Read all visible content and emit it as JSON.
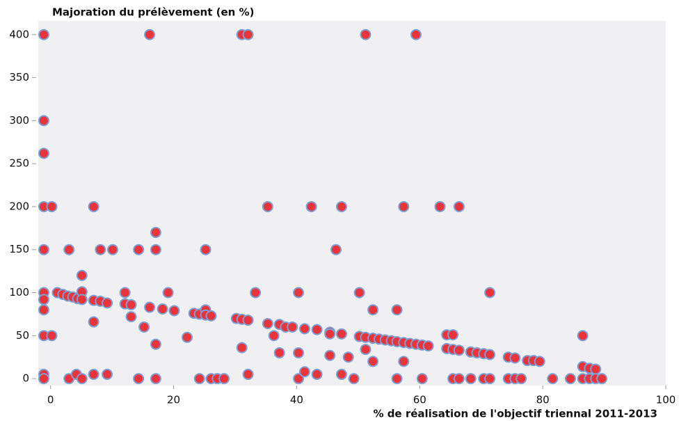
{
  "chart_data": {
    "type": "scatter",
    "title": "Majoration du prélèvement (en %)",
    "x_label": "% de réalisation de l'objectif triennal 2011-2013",
    "xlim": [
      -2,
      100
    ],
    "xticks": [
      0,
      20,
      40,
      60,
      80,
      100
    ],
    "ylim": [
      -8,
      416
    ],
    "yticks": [
      0,
      50,
      100,
      150,
      200,
      250,
      300,
      350,
      400
    ],
    "grid": false,
    "series": [
      {
        "color": "#e8343a",
        "x": [
          -1.1,
          -1.1,
          -1.1,
          -1.1,
          -1.1,
          -1.1,
          -1.1,
          -1.1,
          -1.1,
          -1.1,
          -1.1,
          0.2,
          0.2,
          1.1,
          2,
          2.8,
          3.6,
          3,
          3,
          4.2,
          4.4,
          5.1,
          5.1,
          5.1,
          5.1,
          7,
          7,
          7,
          7,
          8.1,
          8.1,
          9.2,
          9.2,
          10.1,
          12.1,
          12.1,
          13.1,
          13.1,
          14.3,
          14.3,
          15.2,
          16.1,
          16.1,
          17.1,
          17.1,
          17.1,
          17.1,
          18.2,
          19.1,
          20.1,
          22.2,
          23.3,
          24.2,
          24.2,
          25.2,
          25.2,
          25.2,
          26.1,
          26.1,
          27.1,
          28.2,
          30.2,
          31.1,
          31.1,
          31.1,
          32.1,
          32.1,
          32.1,
          33.3,
          35.3,
          35.3,
          36.3,
          37.2,
          37.2,
          38.2,
          39.3,
          40.3,
          40.3,
          40.3,
          41.3,
          41.3,
          42.4,
          43.3,
          43.3,
          45.4,
          45.4,
          45.4,
          46.4,
          47.3,
          47.3,
          47.3,
          48.4,
          49.3,
          50.2,
          50.2,
          51.2,
          51.2,
          51.2,
          52.4,
          52.4,
          52.4,
          53.4,
          54.4,
          55.4,
          56.3,
          56.3,
          56.3,
          57.4,
          57.4,
          57.4,
          58.4,
          59.4,
          59.4,
          60.4,
          60.4,
          61.4,
          63.3,
          64.4,
          64.4,
          65.4,
          65.4,
          65.4,
          66.4,
          66.4,
          66.4,
          68.3,
          68.3,
          69.3,
          70.4,
          70.4,
          71.4,
          71.4,
          71.4,
          74.4,
          74.4,
          75.5,
          75.5,
          76.5,
          77.5,
          78.5,
          79.5,
          81.6,
          84.5,
          86.5,
          86.5,
          86.5,
          87.6,
          87.6,
          88.6,
          88.6,
          89.6
        ],
        "values": [
          400,
          300,
          262,
          200,
          150,
          100,
          92,
          80,
          50,
          5,
          0,
          200,
          50,
          100,
          98,
          96,
          95,
          150,
          0,
          5,
          93,
          120,
          101,
          92,
          0,
          200,
          91,
          66,
          5,
          150,
          90,
          88,
          5,
          150,
          100,
          87,
          86,
          72,
          150,
          0,
          60,
          400,
          83,
          170,
          150,
          40,
          0,
          81,
          100,
          79,
          48,
          76,
          75,
          0,
          150,
          80,
          74,
          73,
          0,
          0,
          0,
          70,
          400,
          69,
          36,
          400,
          68,
          5,
          100,
          200,
          64,
          50,
          63,
          30,
          60,
          60,
          100,
          30,
          0,
          58,
          8,
          200,
          57,
          5,
          54,
          52,
          27,
          150,
          200,
          52,
          5,
          25,
          0,
          100,
          49,
          400,
          48,
          34,
          80,
          47,
          20,
          46,
          45,
          44,
          80,
          43,
          0,
          200,
          42,
          20,
          41,
          400,
          40,
          39,
          0,
          38,
          200,
          51,
          35,
          51,
          34,
          0,
          200,
          33,
          0,
          31,
          0,
          30,
          29,
          0,
          100,
          28,
          0,
          25,
          0,
          24,
          0,
          0,
          21,
          21,
          20,
          0,
          0,
          50,
          14,
          0,
          12,
          0,
          11,
          0,
          0
        ]
      }
    ]
  }
}
